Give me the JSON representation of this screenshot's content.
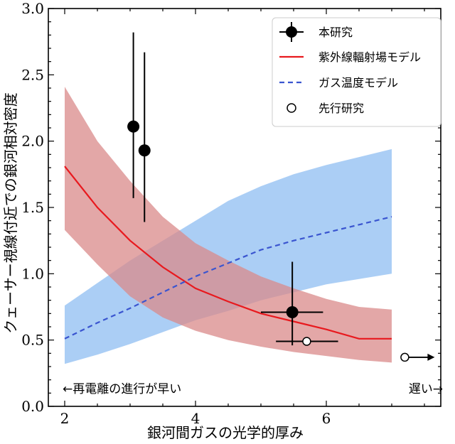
{
  "chart_data": {
    "type": "line",
    "title": "",
    "xlabel": "銀河間ガスの光学的厚み",
    "ylabel": "クェーサー視線付近での銀河相対密度",
    "xlim": [
      1.75,
      7.75
    ],
    "ylim": [
      0.0,
      3.0
    ],
    "x_ticks": [
      2,
      4,
      6
    ],
    "x_tick_labels": [
      "2",
      "4",
      "6"
    ],
    "y_ticks": [
      0.0,
      0.5,
      1.0,
      1.5,
      2.0,
      2.5,
      3.0
    ],
    "y_tick_labels": [
      "0.0",
      "0.5",
      "1.0",
      "1.5",
      "2.0",
      "2.5",
      "3.0"
    ],
    "grid": false,
    "legend_position": "top-right",
    "series": [
      {
        "name": "紫外線輻射場モデル",
        "style": "solid",
        "color": "#e8191e",
        "band_color": "#d98a8a",
        "x": [
          2.0,
          2.5,
          3.0,
          3.5,
          4.0,
          4.5,
          5.0,
          5.5,
          6.0,
          6.5,
          7.0
        ],
        "values": [
          1.81,
          1.5,
          1.25,
          1.05,
          0.89,
          0.79,
          0.7,
          0.64,
          0.58,
          0.51,
          0.51
        ],
        "lower": [
          1.33,
          1.07,
          0.83,
          0.67,
          0.57,
          0.5,
          0.45,
          0.41,
          0.38,
          0.35,
          0.33
        ],
        "upper": [
          2.41,
          2.0,
          1.7,
          1.43,
          1.23,
          1.1,
          0.98,
          0.89,
          0.81,
          0.75,
          0.73
        ]
      },
      {
        "name": "ガス温度モデル",
        "style": "dashed",
        "color": "#3a55d0",
        "band_color": "#9cc6f3",
        "x": [
          2.0,
          2.5,
          3.0,
          3.5,
          4.0,
          4.5,
          5.0,
          5.5,
          6.0,
          6.5,
          7.0
        ],
        "values": [
          0.51,
          0.63,
          0.74,
          0.86,
          0.98,
          1.08,
          1.18,
          1.25,
          1.31,
          1.37,
          1.43
        ],
        "lower": [
          0.32,
          0.39,
          0.47,
          0.56,
          0.65,
          0.72,
          0.8,
          0.86,
          0.92,
          0.96,
          1.0
        ],
        "upper": [
          0.76,
          0.93,
          1.1,
          1.25,
          1.4,
          1.55,
          1.66,
          1.75,
          1.82,
          1.88,
          1.94
        ]
      }
    ],
    "points": [
      {
        "name": "本研究",
        "marker": "filled-circle",
        "data": [
          {
            "x": 3.05,
            "y": 2.11,
            "y_low": 1.57,
            "y_high": 2.82
          },
          {
            "x": 3.22,
            "y": 1.93,
            "y_low": 1.39,
            "y_high": 2.67
          },
          {
            "x": 5.48,
            "y": 0.71,
            "y_low": 0.46,
            "y_high": 1.09,
            "x_low": 5.0,
            "x_high": 5.95
          }
        ]
      },
      {
        "name": "先行研究",
        "marker": "open-circle",
        "data": [
          {
            "x": 5.7,
            "y": 0.49,
            "x_low": 5.23,
            "x_high": 6.18
          }
        ]
      }
    ],
    "lower_limit_marker": {
      "x": 7.2,
      "y": 0.37
    },
    "legend": [
      "本研究",
      "紫外線輻射場モデル",
      "ガス温度モデル",
      "先行研究"
    ],
    "annotations": {
      "left": "←再電離の進行が早い",
      "right": "遅い→"
    }
  }
}
